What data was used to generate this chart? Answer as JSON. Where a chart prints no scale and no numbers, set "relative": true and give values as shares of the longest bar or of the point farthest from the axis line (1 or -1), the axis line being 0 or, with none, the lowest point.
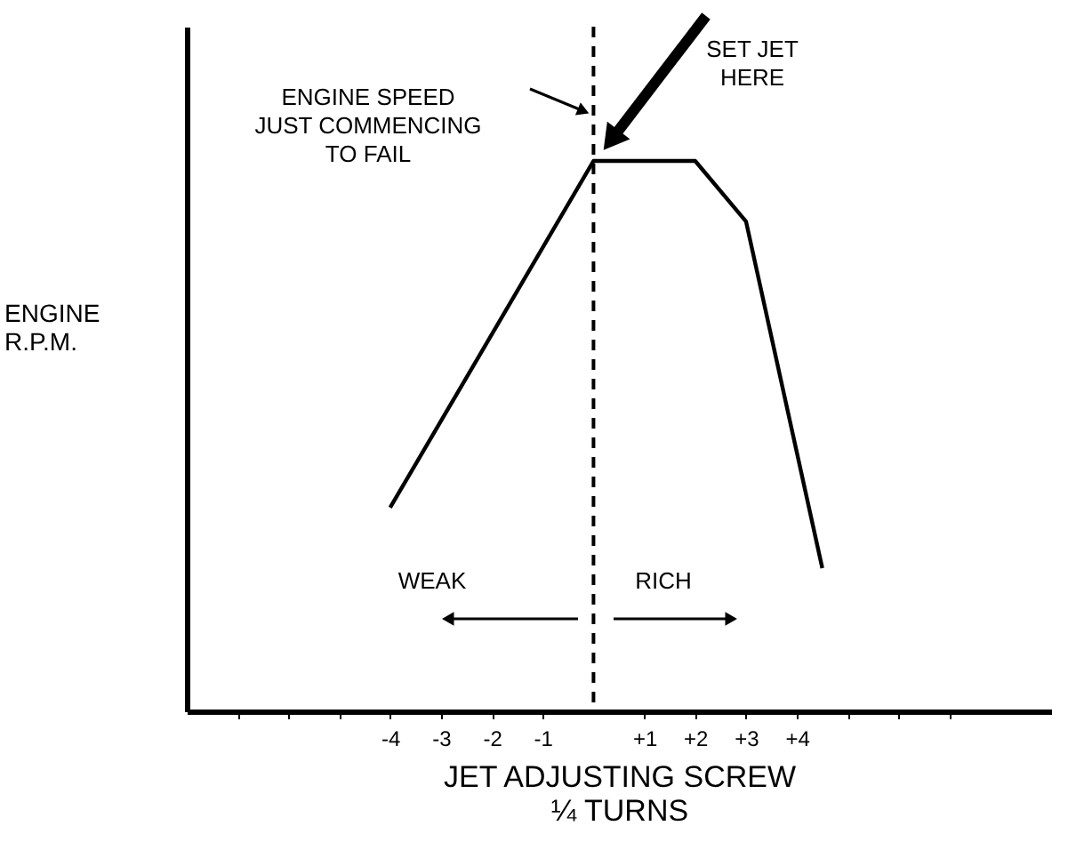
{
  "chart_data": {
    "type": "line",
    "relative": true,
    "xlabel": "JET ADJUSTING SCREW\n¼ TURNS",
    "ylabel": "ENGINE\nR.P.M.",
    "x": [
      -4,
      0,
      2,
      3,
      4.5
    ],
    "series": [
      {
        "color": "#000000",
        "values": [
          0.37,
          1,
          1,
          0.89,
          0.26
        ]
      }
    ],
    "xlim": [
      -8,
      9
    ],
    "xticks": [
      {
        "value": -7,
        "label": null
      },
      {
        "value": -6,
        "label": null
      },
      {
        "value": -5,
        "label": null
      },
      {
        "value": -4,
        "label": "-4"
      },
      {
        "value": -3,
        "label": "-3"
      },
      {
        "value": -2,
        "label": "-2"
      },
      {
        "value": -1,
        "label": "-1"
      },
      {
        "value": 1,
        "label": "+1"
      },
      {
        "value": 2,
        "label": "+2"
      },
      {
        "value": 3,
        "label": "+3"
      },
      {
        "value": 4,
        "label": "+4"
      },
      {
        "value": 5,
        "label": null
      },
      {
        "value": 6,
        "label": null
      },
      {
        "value": 7,
        "label": null
      }
    ],
    "ref_lines": [
      {
        "axis": "x",
        "value": 0,
        "line_style": "dashed",
        "color": "#000000"
      }
    ],
    "annotations": [
      "ENGINE SPEED\nJUST COMMENCING\nTO FAIL",
      "SET JET\nHERE",
      "WEAK",
      "RICH"
    ],
    "grid": false,
    "marker": "none",
    "line_style": "solid"
  }
}
